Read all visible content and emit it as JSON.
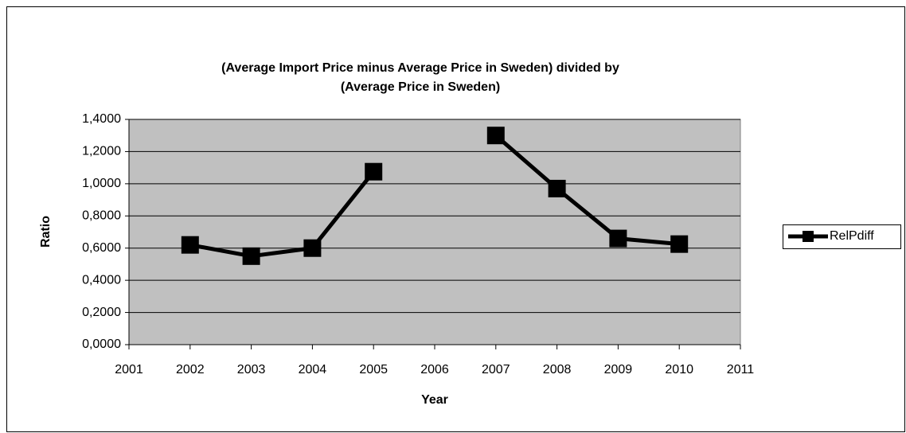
{
  "chart_data": {
    "type": "line",
    "title": [
      "(Average Import Price minus Average Price in Sweden) divided by",
      "(Average Price in Sweden)"
    ],
    "x_label": "Year",
    "y_label": "Ratio",
    "x": [
      2002,
      2003,
      2004,
      2005,
      2006,
      2007,
      2008,
      2009,
      2010
    ],
    "series": [
      {
        "name": "RelPdiff",
        "color": "#000000",
        "values": [
          0.62,
          0.55,
          0.6,
          1.075,
          null,
          1.3,
          0.97,
          0.66,
          0.625
        ]
      }
    ],
    "xlim": [
      2001,
      2011
    ],
    "xticks": [
      2001,
      2002,
      2003,
      2004,
      2005,
      2006,
      2007,
      2008,
      2009,
      2010,
      2011
    ],
    "ylim": [
      0,
      1.4
    ],
    "yticks": [
      {
        "value": 0,
        "label": "0,0000"
      },
      {
        "value": 0.2,
        "label": "0,2000"
      },
      {
        "value": 0.4,
        "label": "0,4000"
      },
      {
        "value": 0.6,
        "label": "0,6000"
      },
      {
        "value": 0.8,
        "label": "0,8000"
      },
      {
        "value": 1.0,
        "label": "1,0000"
      },
      {
        "value": 1.2,
        "label": "1,2000"
      },
      {
        "value": 1.4,
        "label": "1,4000"
      }
    ],
    "grid": true,
    "legend": "right",
    "plot_background": "#c0c0c0"
  }
}
